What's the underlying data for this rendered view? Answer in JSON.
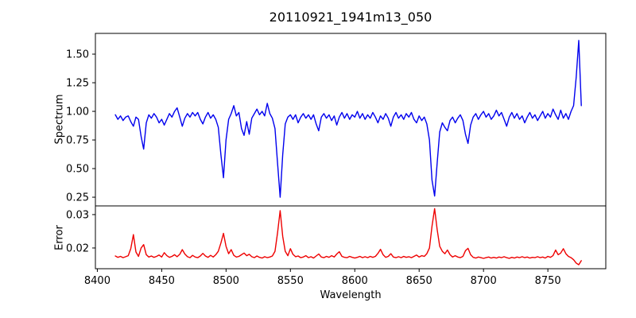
{
  "title": "20110921_1941m13_050",
  "chart_data": {
    "type": "line",
    "title": "20110921_1941m13_050",
    "xlabel": "Wavelength",
    "xlim": [
      8398.5,
      8795
    ],
    "xticks": [
      8400,
      8450,
      8500,
      8550,
      8600,
      8650,
      8700,
      8750
    ],
    "xtick_labels": [
      "8400",
      "8450",
      "8500",
      "8550",
      "8600",
      "8650",
      "8700",
      "8750"
    ],
    "grid": false,
    "legend": "none",
    "x": [
      8414,
      8416,
      8418,
      8420,
      8422,
      8424,
      8426,
      8428,
      8430,
      8432,
      8434,
      8436,
      8438,
      8440,
      8442,
      8444,
      8446,
      8448,
      8450,
      8452,
      8454,
      8456,
      8458,
      8460,
      8462,
      8464,
      8466,
      8468,
      8470,
      8472,
      8474,
      8476,
      8478,
      8480,
      8482,
      8484,
      8486,
      8488,
      8490,
      8492,
      8494,
      8496,
      8498,
      8500,
      8502,
      8504,
      8506,
      8508,
      8510,
      8512,
      8514,
      8516,
      8518,
      8520,
      8522,
      8524,
      8526,
      8528,
      8530,
      8532,
      8534,
      8536,
      8538,
      8540,
      8542,
      8544,
      8546,
      8548,
      8550,
      8552,
      8554,
      8556,
      8558,
      8560,
      8562,
      8564,
      8566,
      8568,
      8570,
      8572,
      8574,
      8576,
      8578,
      8580,
      8582,
      8584,
      8586,
      8588,
      8590,
      8592,
      8594,
      8596,
      8598,
      8600,
      8602,
      8604,
      8606,
      8608,
      8610,
      8612,
      8614,
      8616,
      8618,
      8620,
      8622,
      8624,
      8626,
      8628,
      8630,
      8632,
      8634,
      8636,
      8638,
      8640,
      8642,
      8644,
      8646,
      8648,
      8650,
      8652,
      8654,
      8656,
      8658,
      8660,
      8662,
      8664,
      8666,
      8668,
      8670,
      8672,
      8674,
      8676,
      8678,
      8680,
      8682,
      8684,
      8686,
      8688,
      8690,
      8692,
      8694,
      8696,
      8698,
      8700,
      8702,
      8704,
      8706,
      8708,
      8710,
      8712,
      8714,
      8716,
      8718,
      8720,
      8722,
      8724,
      8726,
      8728,
      8730,
      8732,
      8734,
      8736,
      8738,
      8740,
      8742,
      8744,
      8746,
      8748,
      8750,
      8752,
      8754,
      8756,
      8758,
      8760,
      8762,
      8764,
      8766,
      8768,
      8770,
      8772,
      8774,
      8776
    ],
    "panels": [
      {
        "name": "spectrum",
        "ylabel": "Spectrum",
        "color": "#0000ee",
        "ylim": [
          0.174,
          1.681
        ],
        "yticks": [
          0.25,
          0.5,
          0.75,
          1.0,
          1.25,
          1.5
        ],
        "ytick_labels": [
          "0.25",
          "0.50",
          "0.75",
          "1.00",
          "1.25",
          "1.50"
        ],
        "features": "absorption lines near 8435, 8498, 8542, 8662, 8688; emission spike to ~1.62 at ~8773",
        "values": [
          0.97,
          0.93,
          0.96,
          0.92,
          0.95,
          0.96,
          0.91,
          0.87,
          0.95,
          0.93,
          0.78,
          0.67,
          0.9,
          0.97,
          0.94,
          0.98,
          0.95,
          0.9,
          0.93,
          0.88,
          0.93,
          0.98,
          0.95,
          1.0,
          1.03,
          0.95,
          0.87,
          0.94,
          0.98,
          0.95,
          0.99,
          0.96,
          0.99,
          0.93,
          0.89,
          0.95,
          0.99,
          0.94,
          0.97,
          0.93,
          0.86,
          0.62,
          0.42,
          0.75,
          0.93,
          0.98,
          1.05,
          0.96,
          0.99,
          0.85,
          0.79,
          0.91,
          0.8,
          0.94,
          0.98,
          1.02,
          0.97,
          1.0,
          0.96,
          1.07,
          0.98,
          0.94,
          0.85,
          0.55,
          0.25,
          0.62,
          0.89,
          0.95,
          0.97,
          0.93,
          0.97,
          0.9,
          0.95,
          0.98,
          0.94,
          0.97,
          0.93,
          0.97,
          0.89,
          0.83,
          0.95,
          0.98,
          0.94,
          0.97,
          0.92,
          0.96,
          0.88,
          0.95,
          0.99,
          0.94,
          0.98,
          0.93,
          0.97,
          0.95,
          1.0,
          0.94,
          0.98,
          0.93,
          0.97,
          0.94,
          0.99,
          0.95,
          0.9,
          0.96,
          0.93,
          0.98,
          0.94,
          0.87,
          0.95,
          0.99,
          0.94,
          0.97,
          0.93,
          0.98,
          0.95,
          0.99,
          0.93,
          0.9,
          0.96,
          0.92,
          0.95,
          0.89,
          0.75,
          0.4,
          0.26,
          0.55,
          0.82,
          0.9,
          0.86,
          0.83,
          0.92,
          0.95,
          0.9,
          0.94,
          0.97,
          0.92,
          0.8,
          0.72,
          0.88,
          0.95,
          0.98,
          0.93,
          0.97,
          1.0,
          0.95,
          0.98,
          0.93,
          0.96,
          1.01,
          0.96,
          0.99,
          0.93,
          0.87,
          0.95,
          0.99,
          0.94,
          0.98,
          0.93,
          0.96,
          0.9,
          0.95,
          0.99,
          0.94,
          0.97,
          0.92,
          0.96,
          1.0,
          0.94,
          0.98,
          0.95,
          1.02,
          0.97,
          0.93,
          1.01,
          0.94,
          0.98,
          0.93,
          1.0,
          1.05,
          1.3,
          1.62,
          1.05
        ]
      },
      {
        "name": "error",
        "ylabel": "Error",
        "color": "#ee0000",
        "ylim": [
          0.0138,
          0.0326
        ],
        "yticks": [
          0.02,
          0.03
        ],
        "ytick_labels": [
          "0.02",
          "0.03"
        ],
        "features": "baseline ~0.017 with peaks at 8428, 8498, 8542 (~0.031), 8662 (~0.032); dip to ~0.015 at far right",
        "values": [
          0.0176,
          0.0172,
          0.0175,
          0.0171,
          0.0174,
          0.0177,
          0.0198,
          0.024,
          0.0188,
          0.0175,
          0.02,
          0.021,
          0.018,
          0.0173,
          0.0176,
          0.0172,
          0.0175,
          0.0179,
          0.0173,
          0.0186,
          0.0177,
          0.0172,
          0.0175,
          0.018,
          0.0174,
          0.0181,
          0.0195,
          0.0182,
          0.0174,
          0.0171,
          0.0178,
          0.0173,
          0.0171,
          0.0176,
          0.0184,
          0.0176,
          0.0172,
          0.0178,
          0.0173,
          0.018,
          0.019,
          0.0215,
          0.0244,
          0.0205,
          0.0183,
          0.0195,
          0.0178,
          0.0173,
          0.0175,
          0.018,
          0.0185,
          0.0177,
          0.0181,
          0.0174,
          0.0171,
          0.0176,
          0.0172,
          0.017,
          0.0174,
          0.0171,
          0.0173,
          0.0176,
          0.019,
          0.0245,
          0.0312,
          0.0235,
          0.019,
          0.0177,
          0.0198,
          0.0181,
          0.0174,
          0.0176,
          0.0171,
          0.0173,
          0.0177,
          0.0171,
          0.0174,
          0.017,
          0.0176,
          0.0182,
          0.0173,
          0.0171,
          0.0175,
          0.0172,
          0.0177,
          0.0173,
          0.0182,
          0.0189,
          0.0175,
          0.0172,
          0.0171,
          0.0175,
          0.0172,
          0.017,
          0.0172,
          0.0175,
          0.0171,
          0.0174,
          0.0171,
          0.0175,
          0.0172,
          0.0175,
          0.0184,
          0.0196,
          0.018,
          0.0172,
          0.0175,
          0.0183,
          0.0173,
          0.0171,
          0.0174,
          0.0171,
          0.0175,
          0.0172,
          0.0174,
          0.0171,
          0.0175,
          0.0179,
          0.0173,
          0.0177,
          0.0175,
          0.0183,
          0.02,
          0.0265,
          0.0318,
          0.0255,
          0.0205,
          0.019,
          0.0183,
          0.0194,
          0.018,
          0.0173,
          0.0177,
          0.0173,
          0.0171,
          0.0175,
          0.0192,
          0.0199,
          0.018,
          0.0172,
          0.017,
          0.0173,
          0.0171,
          0.0169,
          0.0171,
          0.0173,
          0.017,
          0.0172,
          0.017,
          0.0173,
          0.0171,
          0.0174,
          0.0171,
          0.0169,
          0.0172,
          0.017,
          0.0173,
          0.0171,
          0.0174,
          0.0171,
          0.0173,
          0.017,
          0.0172,
          0.0171,
          0.0174,
          0.0171,
          0.0173,
          0.017,
          0.0175,
          0.0172,
          0.0177,
          0.0194,
          0.018,
          0.0185,
          0.0198,
          0.0183,
          0.0175,
          0.0171,
          0.0165,
          0.0155,
          0.015,
          0.0162
        ]
      }
    ]
  }
}
